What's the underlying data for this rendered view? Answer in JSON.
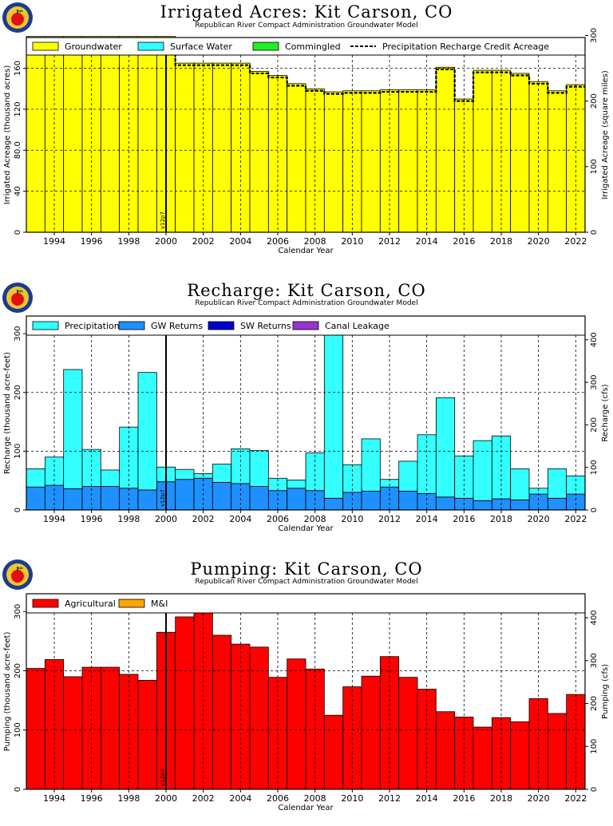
{
  "colors": {
    "groundwater": "#ffff00",
    "surface_water": "#33ffff",
    "commingled": "#22ee22",
    "precipitation": "#33ffff",
    "gw_returns": "#1e90ff",
    "sw_returns": "#0000cc",
    "canal_leakage": "#9933cc",
    "agricultural": "#ff0000",
    "mi": "#ffa500"
  },
  "logo_icon": "apple-logo-icon",
  "chart_data": [
    {
      "type": "bar",
      "title": "Irrigated Acres: Kit Carson, CO",
      "subtitle": "Republican River Compact Administration Groundwater Model",
      "xlabel": "Calendar Year",
      "ylabel": "Irrigated Acreage (thousand acres)",
      "ylabel_right": "Irrigated Acreage (square miles)",
      "xlim": [
        1993,
        2023
      ],
      "ylim": [
        0,
        190
      ],
      "ylim_right": [
        0,
        296.9
      ],
      "yticks": [
        0,
        40,
        80,
        120,
        160
      ],
      "ytick_labels": [
        "0",
        "40",
        "80.0",
        "120",
        "160"
      ],
      "yticks_right": [
        0,
        100,
        200,
        300
      ],
      "xticks": [
        1994,
        1996,
        1998,
        2000,
        2002,
        2004,
        2006,
        2008,
        2010,
        2012,
        2014,
        2016,
        2018,
        2020,
        2022
      ],
      "marker": {
        "x": 2000.5,
        "label": "v12p7"
      },
      "grid": true,
      "legend_position": "top",
      "legend": [
        "Groundwater",
        "Surface Water",
        "Commingled",
        "Precipitation Recharge Credit Acreage"
      ],
      "x": [
        1993,
        1994,
        1995,
        1996,
        1997,
        1998,
        1999,
        2000,
        2001,
        2002,
        2003,
        2004,
        2005,
        2006,
        2007,
        2008,
        2009,
        2010,
        2011,
        2012,
        2013,
        2014,
        2015,
        2016,
        2017,
        2018,
        2019,
        2020,
        2021,
        2022
      ],
      "series": [
        {
          "name": "Groundwater",
          "color_key": "groundwater",
          "style": "bar",
          "values": [
            191,
            191,
            191,
            191,
            191,
            191,
            191,
            191,
            165,
            165,
            165,
            165,
            157,
            153,
            145,
            140,
            137,
            138,
            138,
            139,
            139,
            139,
            161,
            130,
            158,
            158,
            155,
            147,
            138,
            144
          ]
        },
        {
          "name": "Surface Water",
          "color_key": "surface_water",
          "style": "bar",
          "values": [
            0,
            0,
            0,
            0,
            0,
            0,
            0,
            0,
            0,
            0,
            0,
            0,
            0,
            0,
            0,
            0,
            0,
            0,
            0,
            0,
            0,
            0,
            0,
            0,
            0,
            0,
            0,
            0,
            0,
            0
          ]
        },
        {
          "name": "Commingled",
          "color_key": "commingled",
          "style": "bar",
          "values": [
            0,
            0,
            0,
            0,
            0,
            0,
            0,
            0,
            0,
            0,
            0,
            0,
            0,
            0,
            0,
            0,
            0,
            0,
            0,
            0,
            0,
            0,
            0,
            0,
            0,
            0,
            0,
            0,
            0,
            0
          ]
        },
        {
          "name": "Precipitation Recharge Credit Acreage",
          "style": "dashed-step",
          "values": [
            188,
            188,
            188,
            188,
            188,
            188,
            188,
            188,
            163,
            163,
            163,
            163,
            155,
            151,
            143,
            138,
            135,
            136,
            136,
            137,
            137,
            137,
            159,
            128,
            156,
            156,
            153,
            145,
            136,
            142
          ]
        }
      ]
    },
    {
      "type": "bar",
      "title": "Recharge: Kit Carson, CO",
      "subtitle": "Republican River Compact Administration Groundwater Model",
      "xlabel": "Calendar Year",
      "ylabel": "Recharge (thousand acre-feet)",
      "ylabel_right": "Recharge (cfs)",
      "xlim": [
        1993,
        2023
      ],
      "ylim": [
        0,
        330
      ],
      "ylim_right": [
        0,
        455.8
      ],
      "yticks": [
        0,
        100,
        200,
        300
      ],
      "yticks_right": [
        0,
        100,
        200,
        300,
        400
      ],
      "xticks": [
        1994,
        1996,
        1998,
        2000,
        2002,
        2004,
        2006,
        2008,
        2010,
        2012,
        2014,
        2016,
        2018,
        2020,
        2022
      ],
      "marker": {
        "x": 2000.5,
        "label": "v12p7"
      },
      "grid": true,
      "legend_position": "top",
      "legend": [
        "Precipitation",
        "GW Returns",
        "SW Returns",
        "Canal Leakage"
      ],
      "x": [
        1993,
        1994,
        1995,
        1996,
        1997,
        1998,
        1999,
        2000,
        2001,
        2002,
        2003,
        2004,
        2005,
        2006,
        2007,
        2008,
        2009,
        2010,
        2011,
        2012,
        2013,
        2014,
        2015,
        2016,
        2017,
        2018,
        2019,
        2020,
        2021,
        2022
      ],
      "series": [
        {
          "name": "GW Returns",
          "color_key": "gw_returns",
          "style": "bar",
          "values": [
            39,
            42,
            36,
            40,
            40,
            37,
            34,
            48,
            52,
            54,
            47,
            45,
            40,
            33,
            37,
            33,
            20,
            30,
            32,
            39,
            32,
            28,
            22,
            20,
            16,
            19,
            17,
            27,
            20,
            27
          ]
        },
        {
          "name": "Precipitation",
          "color_key": "precipitation",
          "style": "bar",
          "values": [
            31,
            48,
            203,
            63,
            28,
            104,
            200,
            25,
            17,
            8,
            31,
            59,
            61,
            21,
            14,
            64,
            306,
            47,
            89,
            13,
            51,
            100,
            169,
            72,
            102,
            107,
            53,
            10,
            50,
            31
          ]
        },
        {
          "name": "SW Returns",
          "color_key": "sw_returns",
          "style": "bar",
          "values": [
            0,
            0,
            0,
            0,
            0,
            0,
            0,
            0,
            0,
            0,
            0,
            0,
            0,
            0,
            0,
            0,
            0,
            0,
            0,
            0,
            0,
            0,
            0,
            0,
            0,
            0,
            0,
            0,
            0,
            0
          ]
        },
        {
          "name": "Canal Leakage",
          "color_key": "canal_leakage",
          "style": "bar",
          "values": [
            0,
            0,
            0,
            0,
            0,
            0,
            0,
            0,
            0,
            0,
            0,
            0,
            0,
            0,
            0,
            0,
            0,
            0,
            0,
            0,
            0,
            0,
            0,
            0,
            0,
            0,
            0,
            0,
            0,
            0
          ]
        }
      ]
    },
    {
      "type": "bar",
      "title": "Pumping: Kit Carson, CO",
      "subtitle": "Republican River Compact Administration Groundwater Model",
      "xlabel": "Calendar Year",
      "ylabel": "Pumping (thousand acre-feet)",
      "ylabel_right": "Pumping (cfs)",
      "xlim": [
        1993,
        2023
      ],
      "ylim": [
        0,
        330
      ],
      "ylim_right": [
        0,
        455.8
      ],
      "yticks": [
        0,
        100,
        200,
        300
      ],
      "yticks_right": [
        0,
        100,
        200,
        300,
        400
      ],
      "xticks": [
        1994,
        1996,
        1998,
        2000,
        2002,
        2004,
        2006,
        2008,
        2010,
        2012,
        2014,
        2016,
        2018,
        2020,
        2022
      ],
      "marker": {
        "x": 2000.5,
        "label": "v12p7"
      },
      "grid": true,
      "legend_position": "top",
      "legend": [
        "Agricultural",
        "M&I"
      ],
      "x": [
        1993,
        1994,
        1995,
        1996,
        1997,
        1998,
        1999,
        2000,
        2001,
        2002,
        2003,
        2004,
        2005,
        2006,
        2007,
        2008,
        2009,
        2010,
        2011,
        2012,
        2013,
        2014,
        2015,
        2016,
        2017,
        2018,
        2019,
        2020,
        2021,
        2022
      ],
      "series": [
        {
          "name": "Agricultural",
          "color_key": "agricultural",
          "style": "bar",
          "values": [
            204,
            219,
            190,
            206,
            206,
            194,
            184,
            265,
            291,
            302,
            260,
            245,
            240,
            189,
            220,
            203,
            125,
            173,
            191,
            224,
            189,
            169,
            131,
            122,
            105,
            121,
            114,
            153,
            128,
            160
          ]
        },
        {
          "name": "M&I",
          "color_key": "mi",
          "style": "bar",
          "values": [
            0,
            0,
            0,
            0,
            0,
            0,
            0,
            0,
            0,
            0,
            0,
            0,
            0,
            0,
            0,
            0,
            0,
            0,
            0,
            0,
            0,
            0,
            0,
            0,
            0,
            0,
            0,
            0,
            0,
            0
          ]
        }
      ]
    }
  ]
}
